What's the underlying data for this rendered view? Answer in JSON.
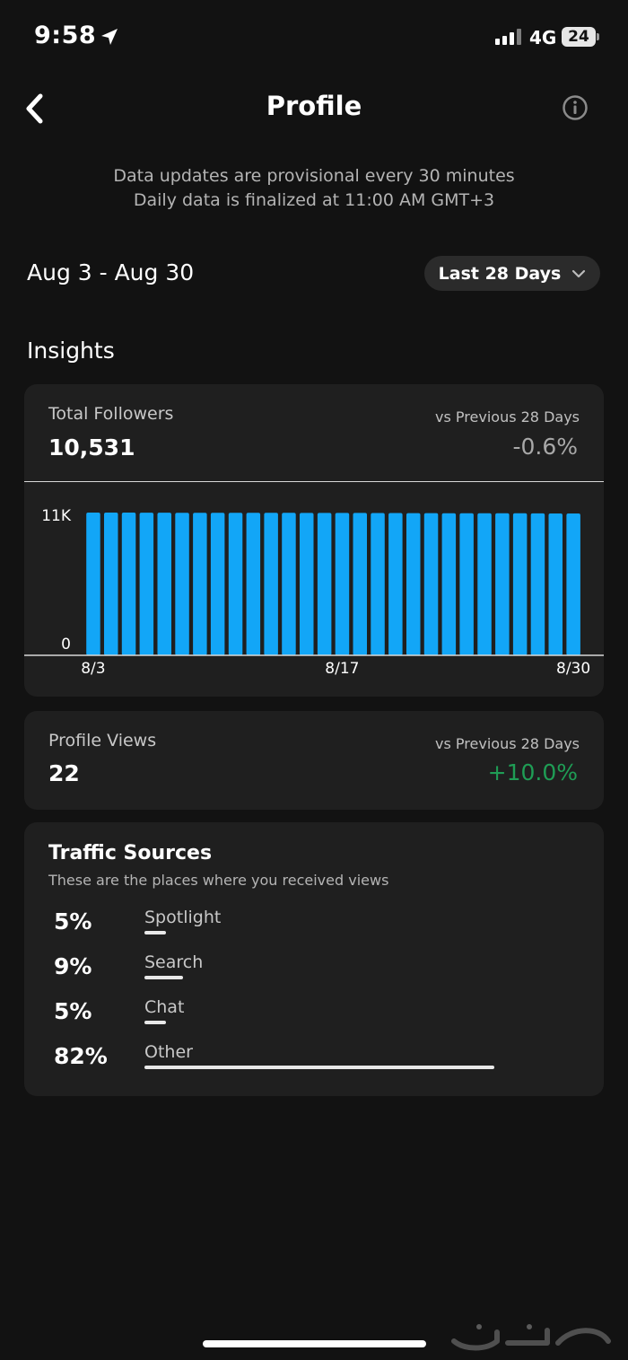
{
  "status_bar": {
    "time": "9:58",
    "network": "4G",
    "battery": "24"
  },
  "header": {
    "title": "Profile"
  },
  "notice": {
    "line1": "Data updates are provisional every 30 minutes",
    "line2": "Daily data is finalized at 11:00 AM GMT+3"
  },
  "date_range": "Aug 3 - Aug 30",
  "range_selector": {
    "label": "Last 28 Days"
  },
  "section_title": "Insights",
  "followers": {
    "label": "Total Followers",
    "value": "10,531",
    "compare_label": "vs Previous 28 Days",
    "delta": "-0.6%",
    "delta_color": "#a8a8a8"
  },
  "chart_data": {
    "type": "bar",
    "x": [
      "8/3",
      "8/4",
      "8/5",
      "8/6",
      "8/7",
      "8/8",
      "8/9",
      "8/10",
      "8/11",
      "8/12",
      "8/13",
      "8/14",
      "8/15",
      "8/16",
      "8/17",
      "8/18",
      "8/19",
      "8/20",
      "8/21",
      "8/22",
      "8/23",
      "8/24",
      "8/25",
      "8/26",
      "8/27",
      "8/28",
      "8/29",
      "8/30"
    ],
    "values": [
      10600,
      10600,
      10600,
      10595,
      10595,
      10590,
      10590,
      10590,
      10585,
      10585,
      10580,
      10580,
      10575,
      10575,
      10570,
      10570,
      10565,
      10565,
      10560,
      10560,
      10555,
      10555,
      10550,
      10550,
      10545,
      10540,
      10535,
      10531
    ],
    "ylim": [
      0,
      11000
    ],
    "y_ticks": [
      "0",
      "11K"
    ],
    "x_ticks": [
      "8/3",
      "8/17",
      "8/30"
    ],
    "bar_color": "#12a6f7",
    "grid": false
  },
  "profile_views": {
    "label": "Profile Views",
    "value": "22",
    "compare_label": "vs Previous 28 Days",
    "delta": "+10.0%",
    "delta_color": "#1f9d55"
  },
  "traffic_sources": {
    "title": "Traffic Sources",
    "subtitle": "These are the places where you received views",
    "items": [
      {
        "pct": "5%",
        "name": "Spotlight",
        "share": 0.05
      },
      {
        "pct": "9%",
        "name": "Search",
        "share": 0.09
      },
      {
        "pct": "5%",
        "name": "Chat",
        "share": 0.05
      },
      {
        "pct": "82%",
        "name": "Other",
        "share": 0.82
      }
    ]
  },
  "icons": {
    "back": "chevron-left-icon",
    "info": "info-icon",
    "dropdown": "chevron-down-icon",
    "location": "location-arrow-icon"
  }
}
